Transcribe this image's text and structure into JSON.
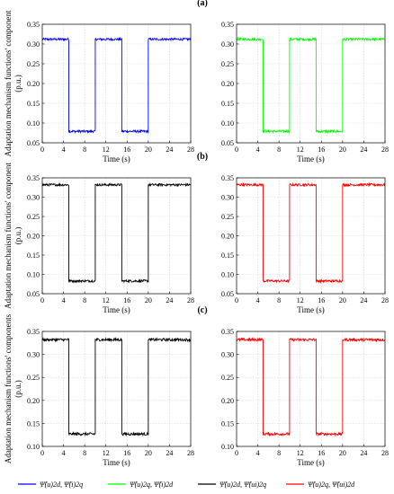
{
  "panel_labels": [
    "(a)",
    "(b)",
    "(c)"
  ],
  "legend": {
    "entries": [
      {
        "label": "Ψ̂(u)2d, Ψ̂(i)2q",
        "color": "#0000ff"
      },
      {
        "label": "Ψ̂(u)2q, Ψ̂(i)2d",
        "color": "#00ff00"
      },
      {
        "label": "Ψ̂(u)2d, Ψ̂(ui)2q",
        "color": "#000000"
      },
      {
        "label": "Ψ̂(u)2q, Ψ̂(ui)2d",
        "color": "#ff0000"
      }
    ]
  },
  "chart_data": [
    {
      "type": "line",
      "panel": "(a)",
      "side": "left",
      "xlabel": "Time (s)",
      "ylabel": "Adaptation mechanism functions' component (p.u.)",
      "xlim": [
        0,
        28
      ],
      "xticks": [
        0,
        4,
        8,
        12,
        16,
        20,
        24,
        28
      ],
      "ylim": [
        0.05,
        0.35
      ],
      "yticks": [
        0.05,
        0.1,
        0.15,
        0.2,
        0.25,
        0.3,
        0.35
      ],
      "series": [
        {
          "color": "#0000ff",
          "x": [
            0,
            5,
            5,
            10,
            10,
            15,
            15,
            20,
            20,
            28
          ],
          "y": [
            0.312,
            0.312,
            0.079,
            0.079,
            0.312,
            0.312,
            0.079,
            0.079,
            0.312,
            0.312
          ]
        }
      ]
    },
    {
      "type": "line",
      "panel": "(a)",
      "side": "right",
      "xlabel": "Time (s)",
      "ylabel": "",
      "xlim": [
        0,
        28
      ],
      "xticks": [
        0,
        4,
        8,
        12,
        16,
        20,
        24,
        28
      ],
      "ylim": [
        0.05,
        0.35
      ],
      "yticks": [
        0.05,
        0.1,
        0.15,
        0.2,
        0.25,
        0.3,
        0.35
      ],
      "series": [
        {
          "color": "#00ff00",
          "x": [
            0,
            5,
            5,
            10,
            10,
            15,
            15,
            20,
            20,
            28
          ],
          "y": [
            0.312,
            0.312,
            0.079,
            0.079,
            0.312,
            0.312,
            0.079,
            0.079,
            0.312,
            0.312
          ]
        }
      ]
    },
    {
      "type": "line",
      "panel": "(b)",
      "side": "left",
      "xlabel": "Time (s)",
      "ylabel": "Adaptation mechanism functions' component (p.u.)",
      "xlim": [
        0,
        28
      ],
      "xticks": [
        0,
        4,
        8,
        12,
        16,
        20,
        24,
        28
      ],
      "ylim": [
        0.05,
        0.35
      ],
      "yticks": [
        0.05,
        0.1,
        0.15,
        0.2,
        0.25,
        0.3,
        0.35
      ],
      "series": [
        {
          "color": "#000000",
          "x": [
            0,
            5,
            5,
            10,
            10,
            15,
            15,
            20,
            20,
            28
          ],
          "y": [
            0.332,
            0.332,
            0.083,
            0.083,
            0.332,
            0.332,
            0.083,
            0.083,
            0.332,
            0.332
          ]
        }
      ]
    },
    {
      "type": "line",
      "panel": "(b)",
      "side": "right",
      "xlabel": "Time (s)",
      "ylabel": "",
      "xlim": [
        0,
        28
      ],
      "xticks": [
        0,
        4,
        8,
        12,
        16,
        20,
        24,
        28
      ],
      "ylim": [
        0.05,
        0.35
      ],
      "yticks": [
        0.05,
        0.1,
        0.15,
        0.2,
        0.25,
        0.3,
        0.35
      ],
      "series": [
        {
          "color": "#ff0000",
          "x": [
            0,
            5,
            5,
            10,
            10,
            15,
            15,
            20,
            20,
            28
          ],
          "y": [
            0.332,
            0.332,
            0.083,
            0.083,
            0.332,
            0.332,
            0.083,
            0.083,
            0.332,
            0.332
          ]
        }
      ]
    },
    {
      "type": "line",
      "panel": "(c)",
      "side": "left",
      "xlabel": "Time (s)",
      "ylabel": "Adaptation mechanism functions' components (p.u.)",
      "xlim": [
        0,
        28
      ],
      "xticks": [
        0,
        4,
        8,
        12,
        16,
        20,
        24,
        28
      ],
      "ylim": [
        0.1,
        0.35
      ],
      "yticks": [
        0.1,
        0.15,
        0.2,
        0.25,
        0.3,
        0.35
      ],
      "series": [
        {
          "color": "#000000",
          "x": [
            0,
            5,
            5,
            10,
            10,
            15,
            15,
            20,
            20,
            28
          ],
          "y": [
            0.332,
            0.332,
            0.127,
            0.127,
            0.332,
            0.332,
            0.127,
            0.127,
            0.332,
            0.332
          ]
        }
      ]
    },
    {
      "type": "line",
      "panel": "(c)",
      "side": "right",
      "xlabel": "Time (s)",
      "ylabel": "",
      "xlim": [
        0,
        28
      ],
      "xticks": [
        0,
        4,
        8,
        12,
        16,
        20,
        24,
        28
      ],
      "ylim": [
        0.1,
        0.35
      ],
      "yticks": [
        0.1,
        0.15,
        0.2,
        0.25,
        0.3,
        0.35
      ],
      "series": [
        {
          "color": "#ff0000",
          "x": [
            0,
            5,
            5,
            10,
            10,
            15,
            15,
            20,
            20,
            28
          ],
          "y": [
            0.332,
            0.332,
            0.127,
            0.127,
            0.332,
            0.332,
            0.127,
            0.127,
            0.332,
            0.332
          ]
        }
      ]
    }
  ]
}
